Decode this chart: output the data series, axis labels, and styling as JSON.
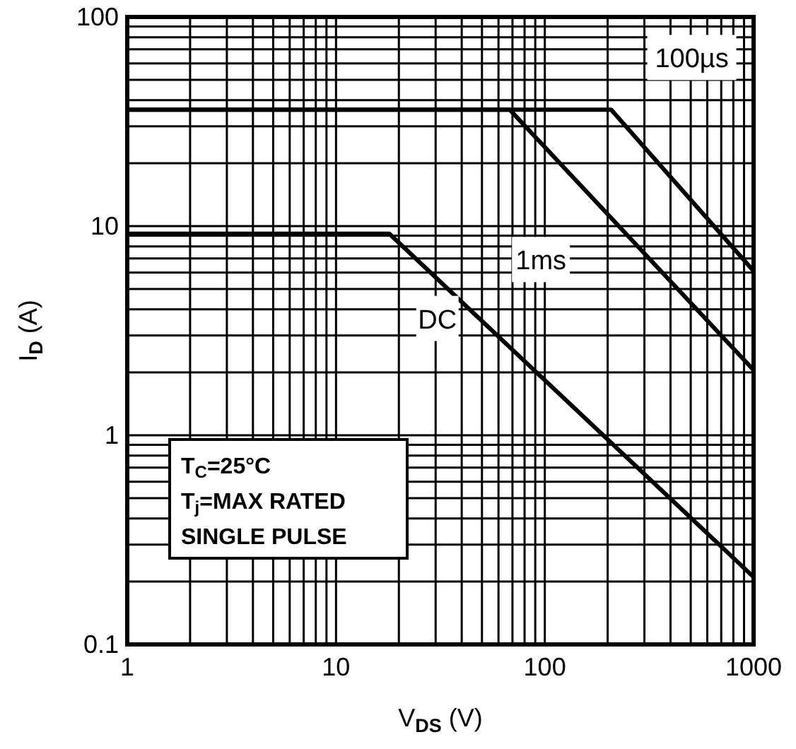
{
  "chart_data": {
    "type": "line",
    "xlabel": "V$_{DS}$ (V)",
    "ylabel": "I$_{D}$ (A)",
    "log": "xy",
    "grid": true,
    "marker": "none",
    "line_style": "solid",
    "xlim": [
      1,
      1000
    ],
    "ylim": [
      0.1,
      100
    ],
    "xticks": [
      1,
      {
        "value": 2,
        "label": null
      },
      {
        "value": 3,
        "label": null
      },
      {
        "value": 4,
        "label": null
      },
      {
        "value": 5,
        "label": null
      },
      {
        "value": 6,
        "label": null
      },
      {
        "value": 7,
        "label": null
      },
      {
        "value": 8,
        "label": null
      },
      {
        "value": 9,
        "label": null
      },
      10,
      {
        "value": 20,
        "label": null
      },
      {
        "value": 30,
        "label": null
      },
      {
        "value": 40,
        "label": null
      },
      {
        "value": 50,
        "label": null
      },
      {
        "value": 60,
        "label": null
      },
      {
        "value": 70,
        "label": null
      },
      {
        "value": 80,
        "label": null
      },
      {
        "value": 90,
        "label": null
      },
      100,
      {
        "value": 200,
        "label": null
      },
      {
        "value": 300,
        "label": null
      },
      {
        "value": 400,
        "label": null
      },
      {
        "value": 500,
        "label": null
      },
      {
        "value": 600,
        "label": null
      },
      {
        "value": 700,
        "label": null
      },
      {
        "value": 800,
        "label": null
      },
      {
        "value": 900,
        "label": null
      },
      1000
    ],
    "yticks": [
      0.1,
      {
        "value": 0.2,
        "label": null
      },
      {
        "value": 0.3,
        "label": null
      },
      {
        "value": 0.4,
        "label": null
      },
      {
        "value": 0.5,
        "label": null
      },
      {
        "value": 0.6,
        "label": null
      },
      {
        "value": 0.7,
        "label": null
      },
      {
        "value": 0.8,
        "label": null
      },
      {
        "value": 0.9,
        "label": null
      },
      1,
      {
        "value": 2,
        "label": null
      },
      {
        "value": 3,
        "label": null
      },
      {
        "value": 4,
        "label": null
      },
      {
        "value": 5,
        "label": null
      },
      {
        "value": 6,
        "label": null
      },
      {
        "value": 7,
        "label": null
      },
      {
        "value": 8,
        "label": null
      },
      {
        "value": 9,
        "label": null
      },
      10,
      {
        "value": 20,
        "label": null
      },
      {
        "value": 30,
        "label": null
      },
      {
        "value": 40,
        "label": null
      },
      {
        "value": 50,
        "label": null
      },
      {
        "value": 60,
        "label": null
      },
      {
        "value": 70,
        "label": null
      },
      {
        "value": 80,
        "label": null
      },
      {
        "value": 90,
        "label": null
      },
      100
    ],
    "series": [
      {
        "name": "100µs",
        "color": "#000000",
        "x": [
          1,
          208,
          1000
        ],
        "values": [
          36,
          36,
          6.1
        ]
      },
      {
        "name": "1ms",
        "color": "#000000",
        "x": [
          1,
          68,
          1000
        ],
        "values": [
          36,
          36,
          2.05
        ]
      },
      {
        "name": "DC",
        "color": "#000000",
        "x": [
          1,
          18,
          1000
        ],
        "values": [
          9.2,
          9.2,
          0.21
        ]
      }
    ],
    "annotations": [
      "T$_{C}$=25°C",
      "T$_{j}$=MAX RATED",
      "SINGLE PULSE"
    ]
  }
}
